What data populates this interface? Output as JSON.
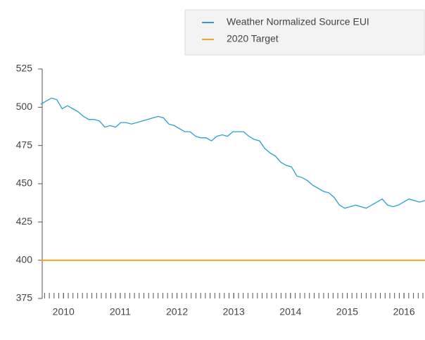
{
  "chart_data": {
    "type": "line",
    "x": [
      2009.6,
      2009.694,
      2009.788,
      2009.882,
      2009.976,
      2010.07,
      2010.164,
      2010.258,
      2010.352,
      2010.446,
      2010.54,
      2010.634,
      2010.728,
      2010.822,
      2010.916,
      2011.01,
      2011.104,
      2011.198,
      2011.292,
      2011.386,
      2011.48,
      2011.574,
      2011.668,
      2011.762,
      2011.856,
      2011.95,
      2012.044,
      2012.138,
      2012.232,
      2012.326,
      2012.42,
      2012.514,
      2012.608,
      2012.702,
      2012.796,
      2012.89,
      2012.984,
      2013.078,
      2013.172,
      2013.266,
      2013.36,
      2013.454,
      2013.548,
      2013.642,
      2013.736,
      2013.83,
      2013.924,
      2014.018,
      2014.112,
      2014.206,
      2014.3,
      2014.394,
      2014.488,
      2014.582,
      2014.676,
      2014.77,
      2014.864,
      2014.958,
      2015.052,
      2015.146,
      2015.24,
      2015.334,
      2015.428,
      2015.522,
      2015.616,
      2015.71,
      2015.804,
      2015.898,
      2015.992,
      2016.086,
      2016.18,
      2016.274,
      2016.368
    ],
    "series": [
      {
        "name": "Weather Normalized Source EUI",
        "color": "#2a9fd0",
        "values": [
          502,
          504,
          506,
          505,
          499,
          501,
          499,
          497,
          494,
          492,
          492,
          491,
          487,
          488,
          487,
          490,
          490,
          489,
          490,
          491,
          492,
          493,
          494,
          493,
          489,
          488,
          486,
          484,
          484,
          481,
          480,
          480,
          478,
          481,
          482,
          481,
          484,
          484,
          484,
          481,
          479,
          478,
          473,
          470,
          468,
          464,
          462,
          461,
          455,
          454,
          452,
          449,
          447,
          445,
          444,
          441,
          436,
          434,
          435,
          436,
          435,
          434,
          436,
          438,
          440,
          436,
          435,
          436,
          438,
          440,
          439,
          438,
          439
        ]
      },
      {
        "name": "2020 Target",
        "color": "#f5a11c",
        "x": [
          2009.6,
          2016.37
        ],
        "values": [
          400,
          400
        ]
      }
    ],
    "xlim": [
      2009.6,
      2016.37
    ],
    "xticks": [
      2010,
      2011,
      2012,
      2013,
      2014,
      2015,
      2016
    ],
    "ylim": [
      375,
      525
    ],
    "yticks": [
      375,
      400,
      425,
      450,
      475,
      500,
      525
    ],
    "grid": false,
    "legend": "top-right"
  }
}
